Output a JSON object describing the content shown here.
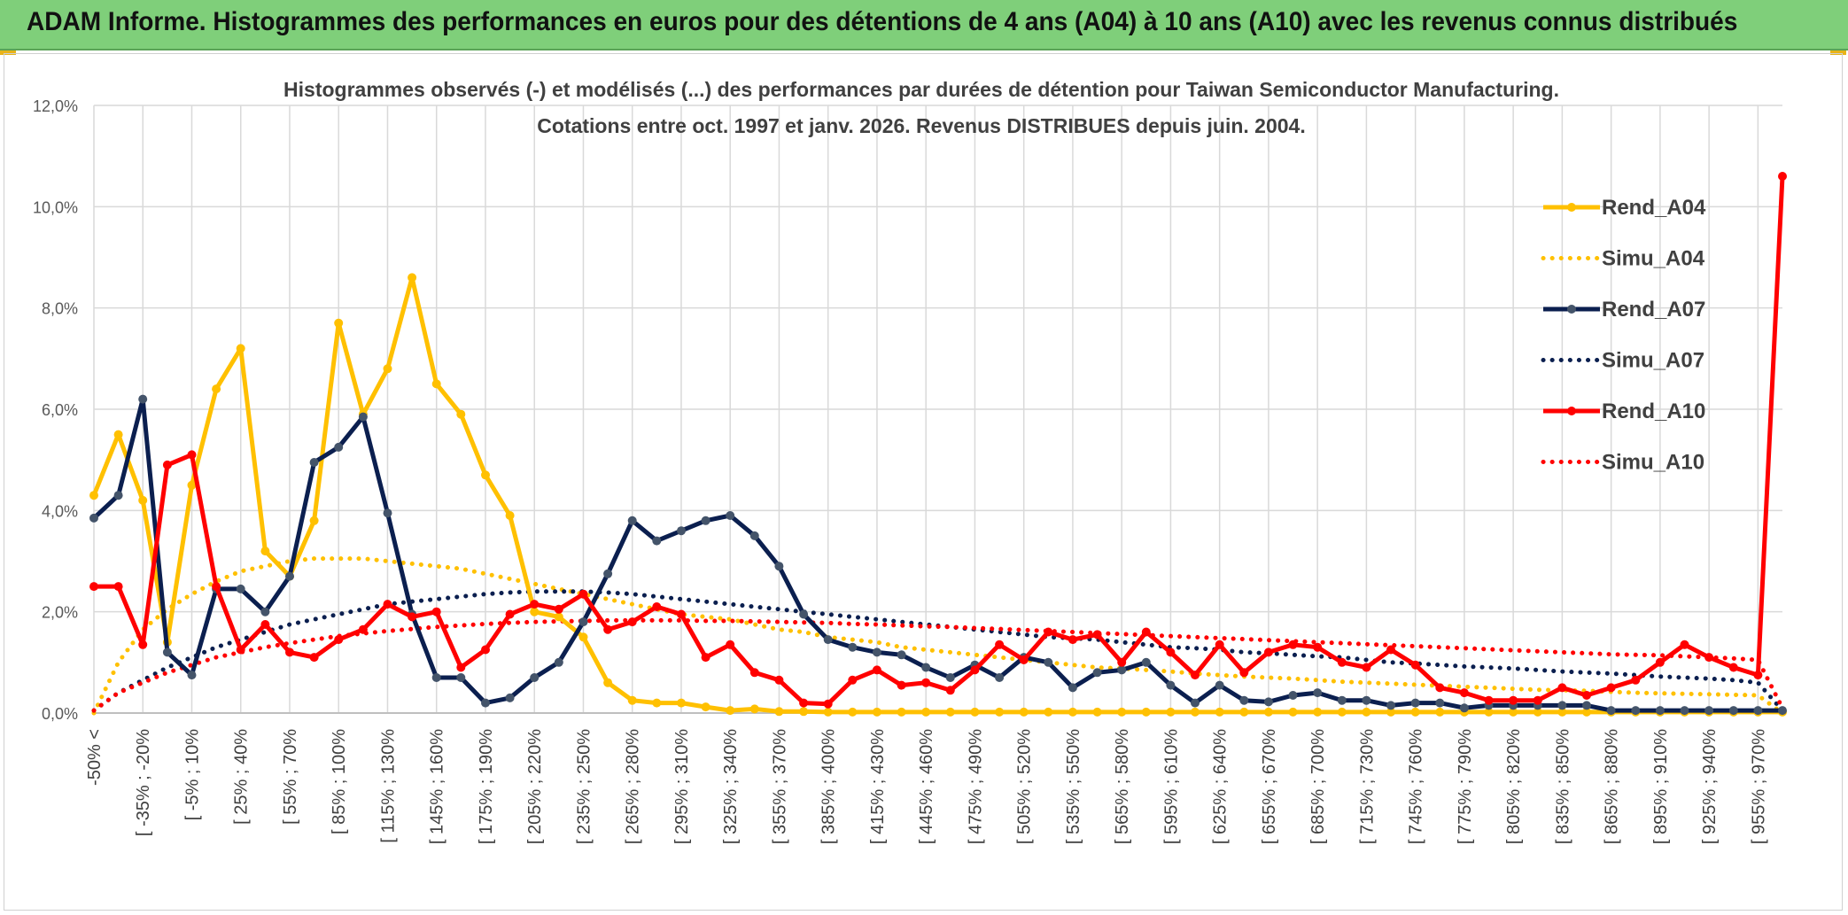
{
  "banner": {
    "title": "ADAM Informe. Histogrammes des performances en euros pour des détentions de 4 ans (A04) à 10 ans (A10) avec les revenus connus distribués"
  },
  "chart_data": {
    "type": "line",
    "title": "Histogrammes observés (-) et modélisés (...) des performances par durées de détention pour Taiwan Semiconductor Manufacturing.",
    "subtitle": "Cotations entre oct. 1997 et janv. 2026. Revenus DISTRIBUES depuis juin. 2004.",
    "xlabel": "",
    "ylabel": "",
    "ylim": [
      0,
      12
    ],
    "y_ticks": [
      "0,0%",
      "2,0%",
      "4,0%",
      "6,0%",
      "8,0%",
      "10,0%",
      "12,0%"
    ],
    "x_tick_labels": [
      "-50% <",
      "[ -35% ; -20%",
      "[ -5% ; 10%",
      "[ 25% ; 40%",
      "[ 55% ; 70%",
      "[ 85% ; 100%",
      "[ 115% ; 130%",
      "[ 145% ; 160%",
      "[ 175% ; 190%",
      "[ 205% ; 220%",
      "[ 235% ; 250%",
      "[ 265% ; 280%",
      "[ 295% ; 310%",
      "[ 325% ; 340%",
      "[ 355% ; 370%",
      "[ 385% ; 400%",
      "[ 415% ; 430%",
      "[ 445% ; 460%",
      "[ 475% ; 490%",
      "[ 505% ; 520%",
      "[ 535% ; 550%",
      "[ 565% ; 580%",
      "[ 595% ; 610%",
      "[ 625% ; 640%",
      "[ 655% ; 670%",
      "[ 685% ; 700%",
      "[ 715% ; 730%",
      "[ 745% ; 760%",
      "[ 775% ; 790%",
      "[ 805% ; 820%",
      "[ 835% ; 850%",
      "[ 865% ; 880%",
      "[ 895% ; 910%",
      "[ 925% ; 940%",
      "[ 955% ; 970%"
    ],
    "n_points": 70,
    "legend_position": "right",
    "series": [
      {
        "name": "Rend_A04",
        "style": "solid",
        "marker": true,
        "color": "#ffc000",
        "values": [
          4.3,
          5.5,
          4.2,
          1.4,
          4.5,
          6.4,
          7.2,
          3.2,
          2.7,
          3.8,
          7.7,
          5.9,
          6.8,
          8.6,
          6.5,
          5.9,
          4.7,
          3.9,
          2.0,
          1.9,
          1.5,
          0.6,
          0.25,
          0.2,
          0.2,
          0.12,
          0.05,
          0.08,
          0.03,
          0.03,
          0.02,
          0.02,
          0.02,
          0.02,
          0.02,
          0.02,
          0.02,
          0.02,
          0.02,
          0.02,
          0.02,
          0.02,
          0.02,
          0.02,
          0.02,
          0.02,
          0.02,
          0.02,
          0.02,
          0.02,
          0.02,
          0.02,
          0.02,
          0.02,
          0.02,
          0.02,
          0.02,
          0.02,
          0.02,
          0.02,
          0.02,
          0.02,
          0.02,
          0.02,
          0.02,
          0.02,
          0.02,
          0.02,
          0.02,
          0.02
        ]
      },
      {
        "name": "Simu_A04",
        "style": "dotted",
        "marker": false,
        "color": "#ffc000",
        "values": [
          0.0,
          1.0,
          1.65,
          2.05,
          2.35,
          2.6,
          2.8,
          2.9,
          3.0,
          3.05,
          3.05,
          3.05,
          3.0,
          2.95,
          2.9,
          2.85,
          2.75,
          2.65,
          2.55,
          2.45,
          2.35,
          2.25,
          2.15,
          2.05,
          1.95,
          1.9,
          1.85,
          1.75,
          1.65,
          1.6,
          1.5,
          1.45,
          1.4,
          1.3,
          1.25,
          1.2,
          1.15,
          1.1,
          1.05,
          1.0,
          0.95,
          0.9,
          0.88,
          0.85,
          0.82,
          0.78,
          0.75,
          0.72,
          0.7,
          0.68,
          0.65,
          0.62,
          0.6,
          0.58,
          0.56,
          0.54,
          0.52,
          0.5,
          0.48,
          0.46,
          0.45,
          0.44,
          0.42,
          0.4,
          0.39,
          0.38,
          0.37,
          0.36,
          0.35,
          0.0
        ]
      },
      {
        "name": "Rend_A07",
        "style": "solid",
        "marker": true,
        "color": "#0b1f4f",
        "values": [
          3.85,
          4.3,
          6.2,
          1.2,
          0.75,
          2.45,
          2.45,
          2.0,
          2.7,
          4.95,
          5.25,
          5.85,
          3.95,
          1.95,
          0.7,
          0.7,
          0.2,
          0.3,
          0.7,
          1.0,
          1.8,
          2.75,
          3.8,
          3.4,
          3.6,
          3.8,
          3.9,
          3.5,
          2.9,
          1.95,
          1.45,
          1.3,
          1.2,
          1.15,
          0.9,
          0.7,
          0.95,
          0.7,
          1.1,
          1.0,
          0.5,
          0.8,
          0.85,
          1.0,
          0.55,
          0.2,
          0.55,
          0.25,
          0.22,
          0.35,
          0.4,
          0.25,
          0.25,
          0.15,
          0.2,
          0.2,
          0.1,
          0.15,
          0.15,
          0.15,
          0.15,
          0.15,
          0.05,
          0.05,
          0.05,
          0.05,
          0.05,
          0.05,
          0.05,
          0.05
        ]
      },
      {
        "name": "Simu_A07",
        "style": "dotted",
        "marker": false,
        "color": "#0b1f4f",
        "values": [
          0.05,
          0.4,
          0.65,
          0.9,
          1.1,
          1.3,
          1.45,
          1.6,
          1.75,
          1.85,
          1.95,
          2.05,
          2.15,
          2.2,
          2.25,
          2.3,
          2.35,
          2.38,
          2.4,
          2.4,
          2.4,
          2.38,
          2.35,
          2.3,
          2.25,
          2.2,
          2.15,
          2.1,
          2.05,
          2.0,
          1.95,
          1.9,
          1.85,
          1.8,
          1.75,
          1.7,
          1.65,
          1.6,
          1.55,
          1.5,
          1.48,
          1.45,
          1.4,
          1.35,
          1.3,
          1.28,
          1.25,
          1.2,
          1.18,
          1.15,
          1.12,
          1.1,
          1.05,
          1.0,
          0.98,
          0.95,
          0.92,
          0.9,
          0.88,
          0.85,
          0.82,
          0.8,
          0.78,
          0.75,
          0.72,
          0.7,
          0.68,
          0.65,
          0.6,
          0.05
        ]
      },
      {
        "name": "Rend_A10",
        "style": "solid",
        "marker": true,
        "color": "#ff0000",
        "values": [
          2.5,
          2.5,
          1.35,
          4.9,
          5.1,
          2.5,
          1.25,
          1.75,
          1.2,
          1.1,
          1.45,
          1.65,
          2.15,
          1.9,
          2.0,
          0.9,
          1.25,
          1.95,
          2.15,
          2.05,
          2.35,
          1.65,
          1.8,
          2.1,
          1.95,
          1.1,
          1.35,
          0.8,
          0.65,
          0.2,
          0.18,
          0.65,
          0.85,
          0.55,
          0.6,
          0.45,
          0.85,
          1.35,
          1.05,
          1.6,
          1.45,
          1.55,
          1.0,
          1.6,
          1.2,
          0.75,
          1.35,
          0.8,
          1.2,
          1.35,
          1.3,
          1.0,
          0.9,
          1.25,
          0.95,
          0.5,
          0.4,
          0.25,
          0.25,
          0.25,
          0.5,
          0.35,
          0.5,
          0.65,
          1.0,
          1.35,
          1.1,
          0.9,
          0.75,
          10.6
        ]
      },
      {
        "name": "Simu_A10",
        "style": "dotted",
        "marker": false,
        "color": "#ff0000",
        "values": [
          0.05,
          0.4,
          0.6,
          0.8,
          0.95,
          1.1,
          1.2,
          1.3,
          1.38,
          1.45,
          1.52,
          1.57,
          1.62,
          1.66,
          1.7,
          1.73,
          1.76,
          1.78,
          1.8,
          1.81,
          1.82,
          1.83,
          1.83,
          1.83,
          1.83,
          1.82,
          1.82,
          1.81,
          1.8,
          1.79,
          1.78,
          1.76,
          1.75,
          1.73,
          1.71,
          1.7,
          1.68,
          1.66,
          1.64,
          1.62,
          1.6,
          1.58,
          1.56,
          1.54,
          1.52,
          1.5,
          1.48,
          1.46,
          1.44,
          1.42,
          1.4,
          1.38,
          1.36,
          1.34,
          1.32,
          1.3,
          1.28,
          1.26,
          1.24,
          1.22,
          1.2,
          1.18,
          1.16,
          1.15,
          1.14,
          1.12,
          1.1,
          1.08,
          1.05,
          0.1
        ]
      }
    ]
  }
}
